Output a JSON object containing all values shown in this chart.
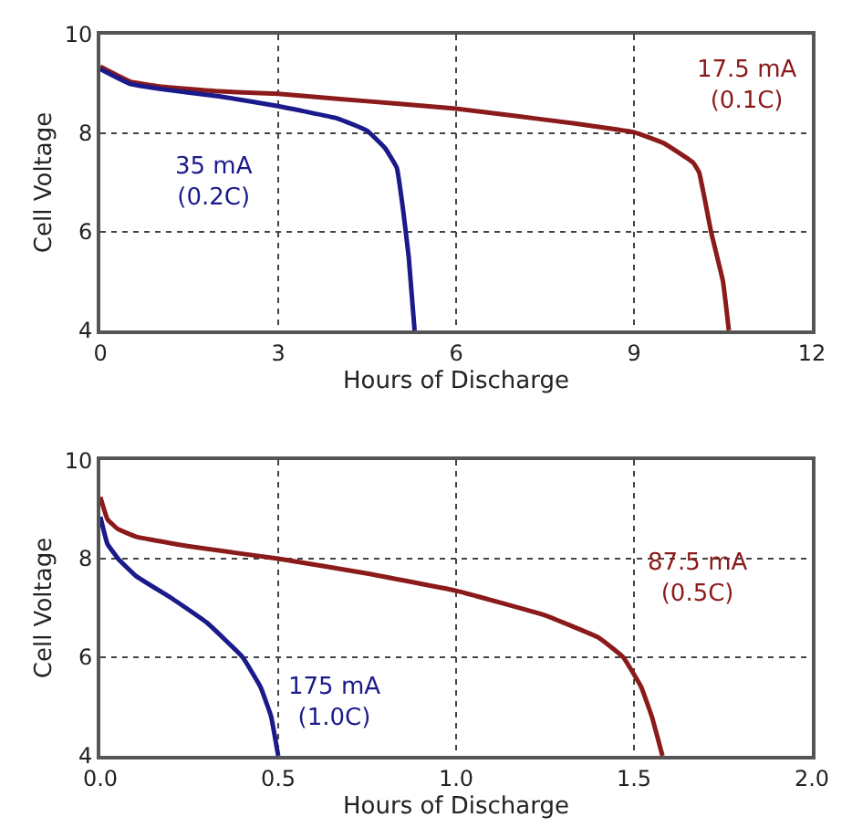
{
  "chart_data": [
    {
      "type": "line",
      "xlabel": "Hours of Discharge",
      "ylabel": "Cell Voltage",
      "xlim": [
        0,
        12
      ],
      "xticks": [
        0,
        3,
        6,
        9,
        12
      ],
      "ylim": [
        4,
        10
      ],
      "yticks": [
        4,
        6,
        8,
        10
      ],
      "grid": true,
      "line_style": "solid",
      "series": [
        {
          "color": "#8b1a1a",
          "x": [
            0,
            0.5,
            1,
            2,
            3,
            4,
            5,
            6,
            7,
            8,
            9,
            9.5,
            10,
            10.1,
            10.3,
            10.5,
            10.6
          ],
          "values": [
            9.35,
            9.05,
            8.95,
            8.85,
            8.8,
            8.7,
            8.6,
            8.5,
            8.35,
            8.2,
            8.02,
            7.8,
            7.4,
            7.2,
            6.0,
            5.0,
            4.0
          ]
        },
        {
          "color": "#1a1a8b",
          "x": [
            0,
            0.5,
            1,
            2,
            3,
            4,
            4.5,
            4.8,
            5.0,
            5.1,
            5.2,
            5.3
          ],
          "values": [
            9.3,
            9.0,
            8.9,
            8.75,
            8.55,
            8.3,
            8.05,
            7.7,
            7.3,
            6.5,
            5.5,
            4.0
          ]
        }
      ],
      "annotations": [
        "17.5 mA\n(0.1C)",
        "35 mA\n(0.2C)"
      ]
    },
    {
      "type": "line",
      "xlabel": "Hours of Discharge",
      "ylabel": "Cell Voltage",
      "xlim": [
        0,
        2
      ],
      "xticks": [
        {
          "value": 0,
          "label": "0.0"
        },
        0.5,
        {
          "value": 1,
          "label": "1.0"
        },
        1.5,
        {
          "value": 2,
          "label": "2.0"
        }
      ],
      "ylim": [
        4,
        10
      ],
      "yticks": [
        4,
        6,
        8,
        10
      ],
      "grid": true,
      "line_style": "solid",
      "series": [
        {
          "color": "#8b1a1a",
          "x": [
            0,
            0.02,
            0.05,
            0.1,
            0.25,
            0.5,
            0.75,
            1.0,
            1.25,
            1.4,
            1.47,
            1.52,
            1.55,
            1.58
          ],
          "values": [
            9.25,
            8.8,
            8.6,
            8.45,
            8.25,
            8.0,
            7.7,
            7.35,
            6.85,
            6.4,
            6.0,
            5.4,
            4.8,
            4.0
          ]
        },
        {
          "color": "#1a1a8b",
          "x": [
            0,
            0.02,
            0.05,
            0.1,
            0.2,
            0.3,
            0.4,
            0.45,
            0.48,
            0.5
          ],
          "values": [
            8.85,
            8.3,
            8.0,
            7.65,
            7.2,
            6.7,
            6.0,
            5.4,
            4.8,
            4.0
          ]
        }
      ],
      "annotations": [
        "87.5 mA\n(0.5C)",
        "175 mA\n(1.0C)"
      ]
    }
  ]
}
